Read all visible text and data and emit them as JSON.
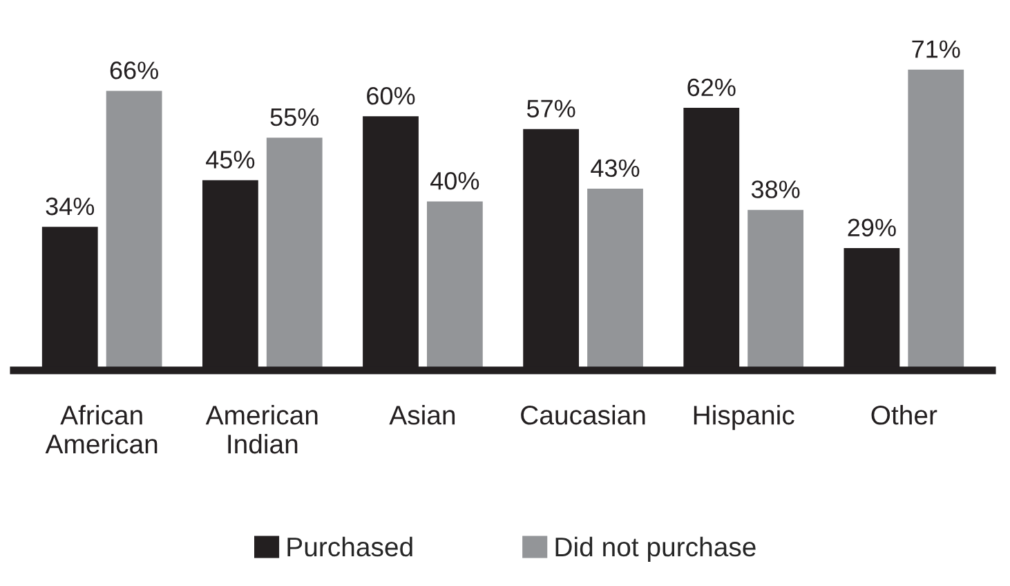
{
  "chart_data": {
    "type": "bar",
    "categories": [
      "African\nAmerican",
      "American\nIndian",
      "Asian",
      "Caucasian",
      "Hispanic",
      "Other"
    ],
    "series": [
      {
        "name": "Purchased",
        "color": "#231f20",
        "values": [
          34,
          45,
          60,
          57,
          62,
          29
        ],
        "value_labels": [
          "34%",
          "45%",
          "60%",
          "57%",
          "62%",
          "29%"
        ]
      },
      {
        "name": "Did not purchase",
        "color": "#939598",
        "values": [
          66,
          55,
          40,
          43,
          38,
          71
        ],
        "value_labels": [
          "66%",
          "55%",
          "40%",
          "43%",
          "38%",
          "71%"
        ]
      }
    ],
    "legend": "bottom"
  }
}
